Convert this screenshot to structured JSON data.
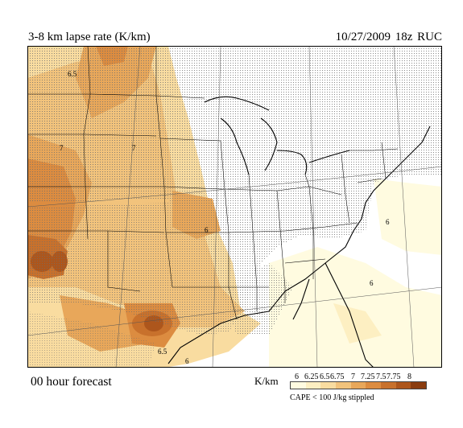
{
  "header": {
    "title": "3-8 km lapse rate (K/km)",
    "valid": "10/27/2009  18z  RUC"
  },
  "footer": {
    "forecast": "00 hour forecast",
    "units": "K/km",
    "stipple_note": "CAPE < 100 J/kg stippled"
  },
  "legend": {
    "labels": [
      "6",
      "6.25",
      "6.5",
      "6.75",
      "7",
      "7.25",
      "7.5",
      "7.75",
      "8"
    ],
    "colors": [
      "#fffbe0",
      "#fdefc2",
      "#f9dca0",
      "#f2c37c",
      "#e8a75a",
      "#dc8c40",
      "#c8712c",
      "#ad561c",
      "#8a3c0f"
    ]
  },
  "map": {
    "contour_labels": [
      "6.5",
      "7",
      "7",
      "6",
      "6",
      "6",
      "6.5",
      "6"
    ],
    "colors": {
      "ocean": "#ffffff",
      "stipple": "#7a7a7a",
      "land": "#ffffff"
    }
  }
}
